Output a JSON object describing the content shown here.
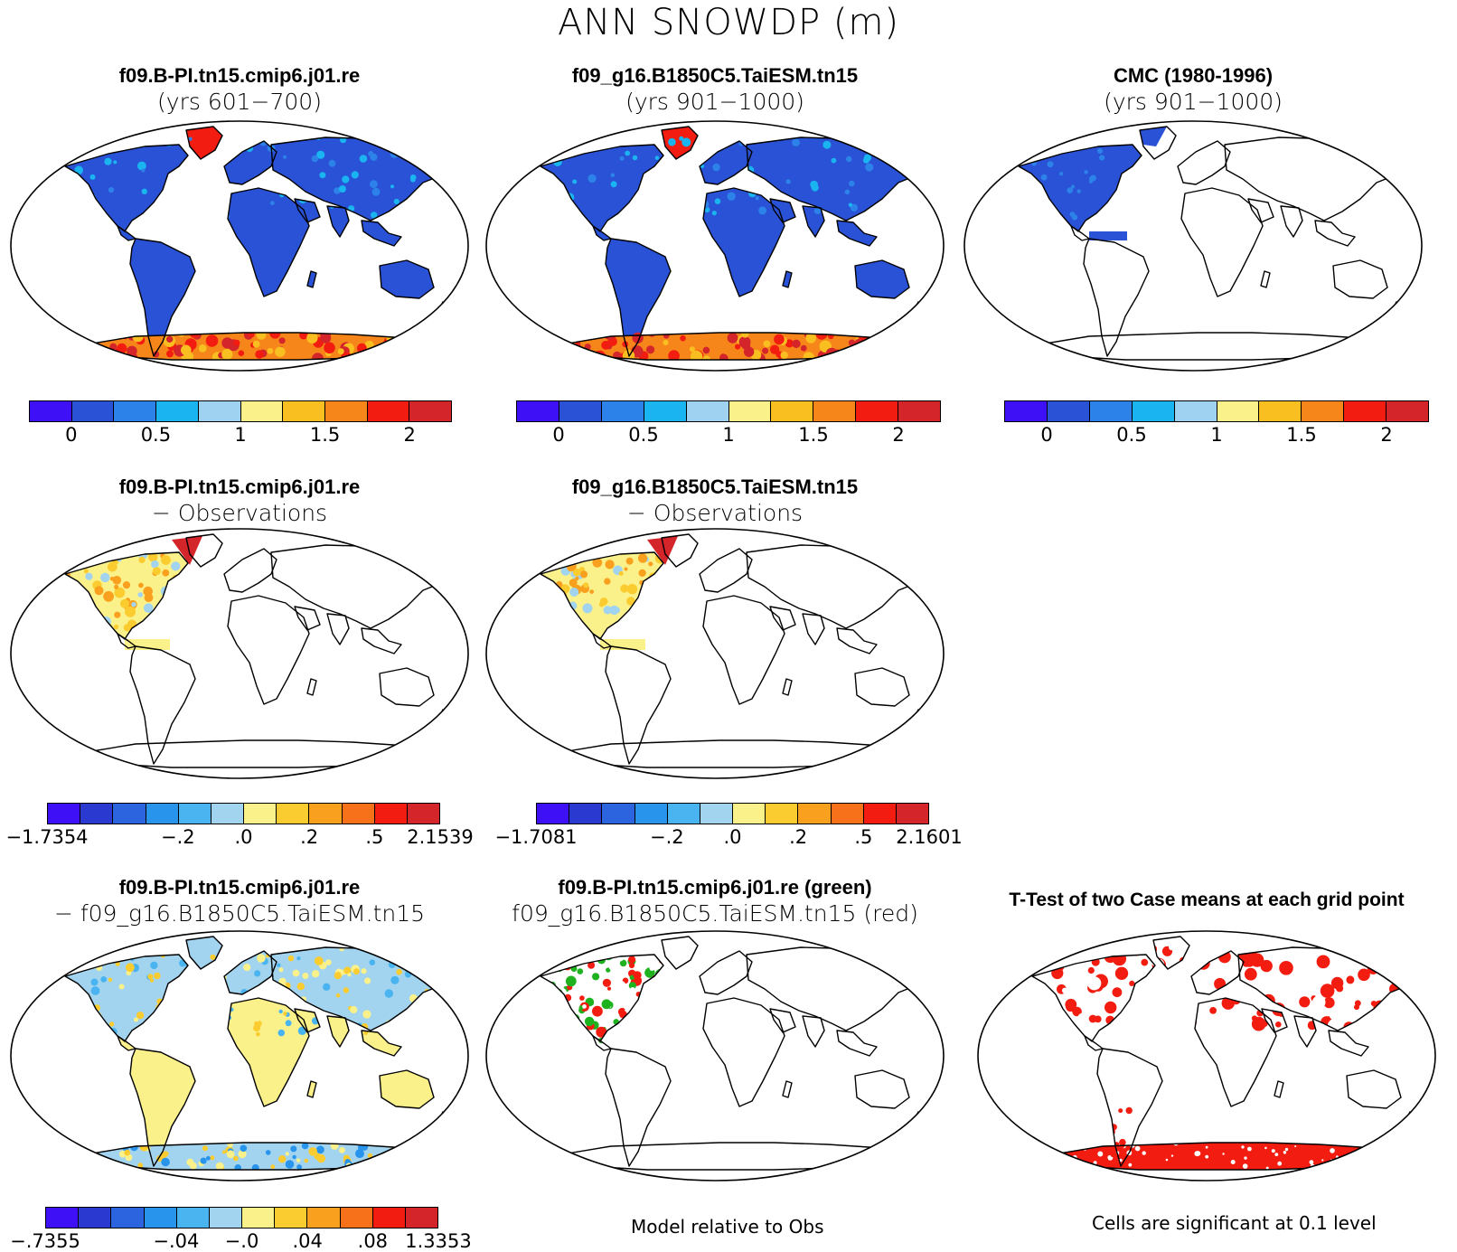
{
  "title": "ANN SNOWDP (m)",
  "panels": [
    {
      "title": "f09.B-PI.tn15.cmip6.j01.re",
      "subtitle": "(yrs 601−700)",
      "style": "model"
    },
    {
      "title": "f09_g16.B1850C5.TaiESM.tn15",
      "subtitle": "(yrs 901−1000)",
      "style": "model"
    },
    {
      "title": "CMC (1980-1996)",
      "subtitle": "(yrs 901−1000)",
      "style": "obs"
    },
    {
      "title": "f09.B-PI.tn15.cmip6.j01.re",
      "subtitle": "− Observations",
      "style": "diffobs"
    },
    {
      "title": "f09_g16.B1850C5.TaiESM.tn15",
      "subtitle": "− Observations",
      "style": "diffobs"
    },
    {
      "title": "f09.B-PI.tn15.cmip6.j01.re",
      "subtitle": "− f09_g16.B1850C5.TaiESM.tn15",
      "style": "diffcase"
    },
    {
      "title": "f09.B-PI.tn15.cmip6.j01.re (green)",
      "subtitle": "f09_g16.B1850C5.TaiESM.tn15 (red)",
      "style": "relative"
    },
    {
      "title": "T-Test of two Case means at each grid point",
      "subtitle": "",
      "style": "ttest"
    }
  ],
  "colorbars": {
    "model": {
      "colors": [
        "#3d10f5",
        "#2a52d6",
        "#2c82e8",
        "#1ab4f0",
        "#9fd2f0",
        "#fbf18a",
        "#f9be20",
        "#f7861a",
        "#f21d10",
        "#d4252a"
      ],
      "labels": [
        "0",
        "0.5",
        "1",
        "1.5",
        "2"
      ]
    },
    "diff1": {
      "colors": [
        "#3d10f5",
        "#2a3ad0",
        "#2c64e0",
        "#2894ec",
        "#49b4f0",
        "#a2d4f0",
        "#fbf18a",
        "#fbcc30",
        "#f9a01e",
        "#f7701a",
        "#f21d10",
        "#d4252a"
      ],
      "labels": [
        "−1.7354",
        "−.2",
        ".0",
        ".2",
        ".5",
        "2.1539"
      ]
    },
    "diff2": {
      "colors": [
        "#3d10f5",
        "#2a3ad0",
        "#2c64e0",
        "#2894ec",
        "#49b4f0",
        "#a2d4f0",
        "#fbf18a",
        "#fbcc30",
        "#f9a01e",
        "#f7701a",
        "#f21d10",
        "#d4252a"
      ],
      "labels": [
        "−1.7081",
        "−.2",
        ".0",
        ".2",
        ".5",
        "2.1601"
      ]
    },
    "diff3": {
      "colors": [
        "#3d10f5",
        "#2a3ad0",
        "#2c64e0",
        "#2894ec",
        "#49b4f0",
        "#a2d4f0",
        "#fbf18a",
        "#fbcc30",
        "#f9a01e",
        "#f7701a",
        "#f21d10",
        "#d4252a"
      ],
      "labels": [
        "−.7355",
        "−.04",
        "−.0",
        ".04",
        ".08",
        "1.3353"
      ]
    }
  },
  "notes": {
    "relative": "Model relative to Obs",
    "ttest": "Cells are significant at 0.1 level"
  }
}
